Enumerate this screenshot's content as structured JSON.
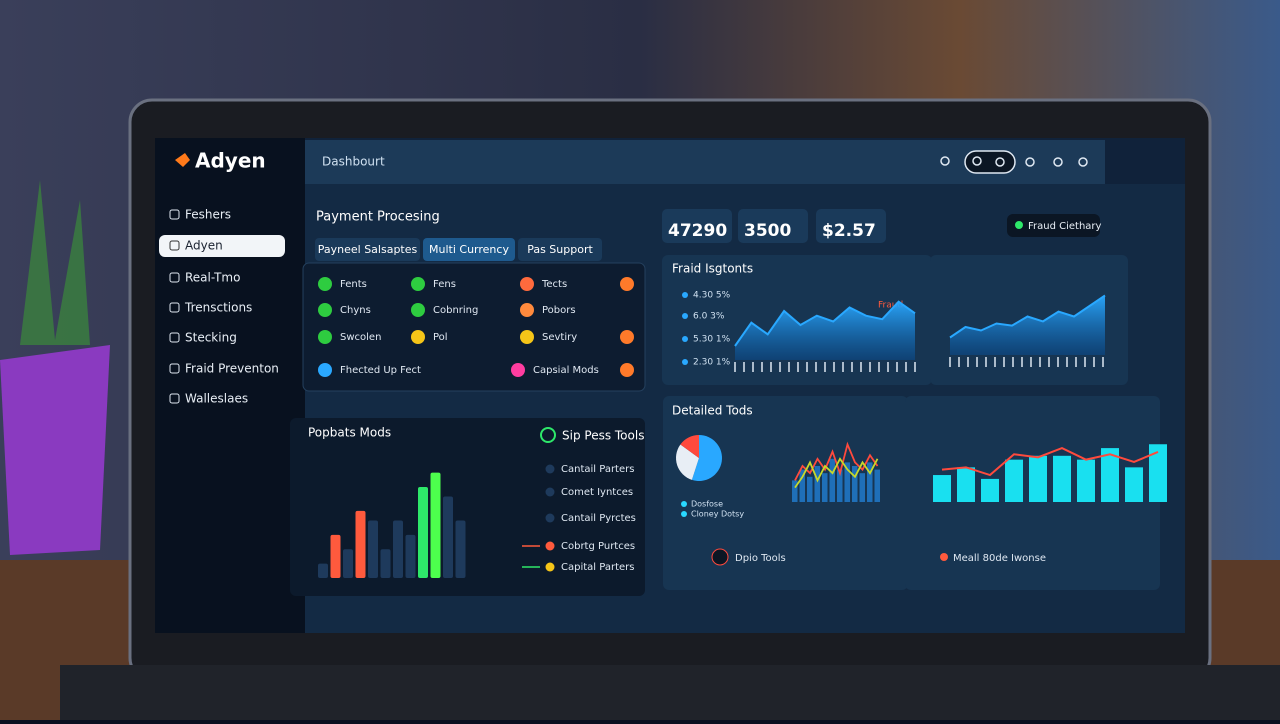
{
  "logo": "Adyen",
  "header": {
    "title": "Dashbourt"
  },
  "sidebar": {
    "items": [
      "Feshers",
      "Adyen",
      "Real-Tmo",
      "Trensctions",
      "Stecking",
      "Fraid Preventon",
      "Walleslaes"
    ],
    "active": 1
  },
  "payment": {
    "title": "Payment Procesing",
    "tabs": [
      "Payneel Salsaptes",
      "Multi Currency",
      "Pas Support"
    ],
    "active_tab": 1,
    "rows": [
      [
        "Fents",
        "Fens",
        "Tects"
      ],
      [
        "Chyns",
        "Cobnring",
        "Pobors"
      ],
      [
        "Swcolen",
        "Pol",
        "Sevtiry"
      ],
      [
        "Fhected Up Fect",
        "Capsial Mods"
      ]
    ],
    "icon_colors": [
      [
        "#2ecc40",
        "#2ecc40",
        "#ff6a3d"
      ],
      [
        "#2ecc40",
        "#2ecc40",
        "#ff8a3d"
      ],
      [
        "#2ecc40",
        "#f5c518",
        "#f5c518"
      ],
      [
        "#2aa8ff",
        "#ff3da0"
      ]
    ]
  },
  "stats": [
    "47290",
    "3500",
    "$2.57"
  ],
  "fraud_button": "Fraud Ciethary",
  "fraud": {
    "title": "Fraid Isgtonts",
    "labels": [
      "4.30 5%",
      "6.0 3%",
      "5.30 1%",
      "2.30 1%"
    ],
    "tag": "Fraud",
    "values": [
      12,
      32,
      22,
      42,
      30,
      38,
      33,
      45,
      38,
      35,
      50,
      40
    ],
    "ylim": [
      0,
      60
    ],
    "color": "#29a8ff"
  },
  "trend": {
    "values": [
      25,
      40,
      35,
      45,
      42,
      55,
      48,
      62,
      55,
      70,
      85
    ],
    "ylim": [
      0,
      100
    ],
    "color": "#29a8ff"
  },
  "popbats": {
    "title": "Popbats Mods",
    "tools": "Sip Pess Tools",
    "values": [
      15,
      45,
      30,
      70,
      60,
      30,
      60,
      45,
      95,
      110,
      85,
      60
    ],
    "colors": [
      "#1e3a5c",
      "#ff5a3d",
      "#1e3a5c",
      "#ff5a3d",
      "#1e3a5c",
      "#1e3a5c",
      "#1e3a5c",
      "#1e3a5c",
      "#2ee86a",
      "#4dff4d",
      "#1e3a5c",
      "#1e3a5c"
    ],
    "ylim": [
      0,
      120
    ],
    "legend": [
      "Cantail Parters",
      "Comet Iyntces",
      "Cantail Pyrctes",
      "Cobrtg Purtces",
      "Capital Parters"
    ],
    "legend_colors": [
      "#1e3a5c",
      "#1e3a5c",
      "#1e3a5c",
      "#ff5a3d",
      "#f5c518"
    ]
  },
  "detailed": {
    "title": "Detailed Tods",
    "pie": [
      55,
      30,
      15
    ],
    "pie_colors": [
      "#29a8ff",
      "#e8eef5",
      "#ff4a3d"
    ],
    "bars": [
      30,
      45,
      35,
      50,
      40,
      60,
      45,
      55,
      50,
      40,
      55,
      45
    ],
    "red": [
      30,
      50,
      40,
      60,
      45,
      70,
      40,
      80,
      55,
      45,
      65,
      50
    ],
    "yellow": [
      20,
      35,
      55,
      30,
      50,
      40,
      60,
      45,
      35,
      55,
      40,
      60
    ],
    "ylim": [
      0,
      100
    ],
    "legend": [
      "Dosfose",
      "Cloney Dotsy"
    ],
    "footer": "Dpio Tools"
  },
  "barpanel": {
    "bars": [
      35,
      45,
      30,
      55,
      60,
      60,
      55,
      70,
      45,
      75
    ],
    "line": [
      42,
      45,
      35,
      62,
      58,
      70,
      55,
      62,
      52,
      65
    ],
    "ylim": [
      0,
      100
    ],
    "footer": "Meall 80de Iwonse"
  }
}
